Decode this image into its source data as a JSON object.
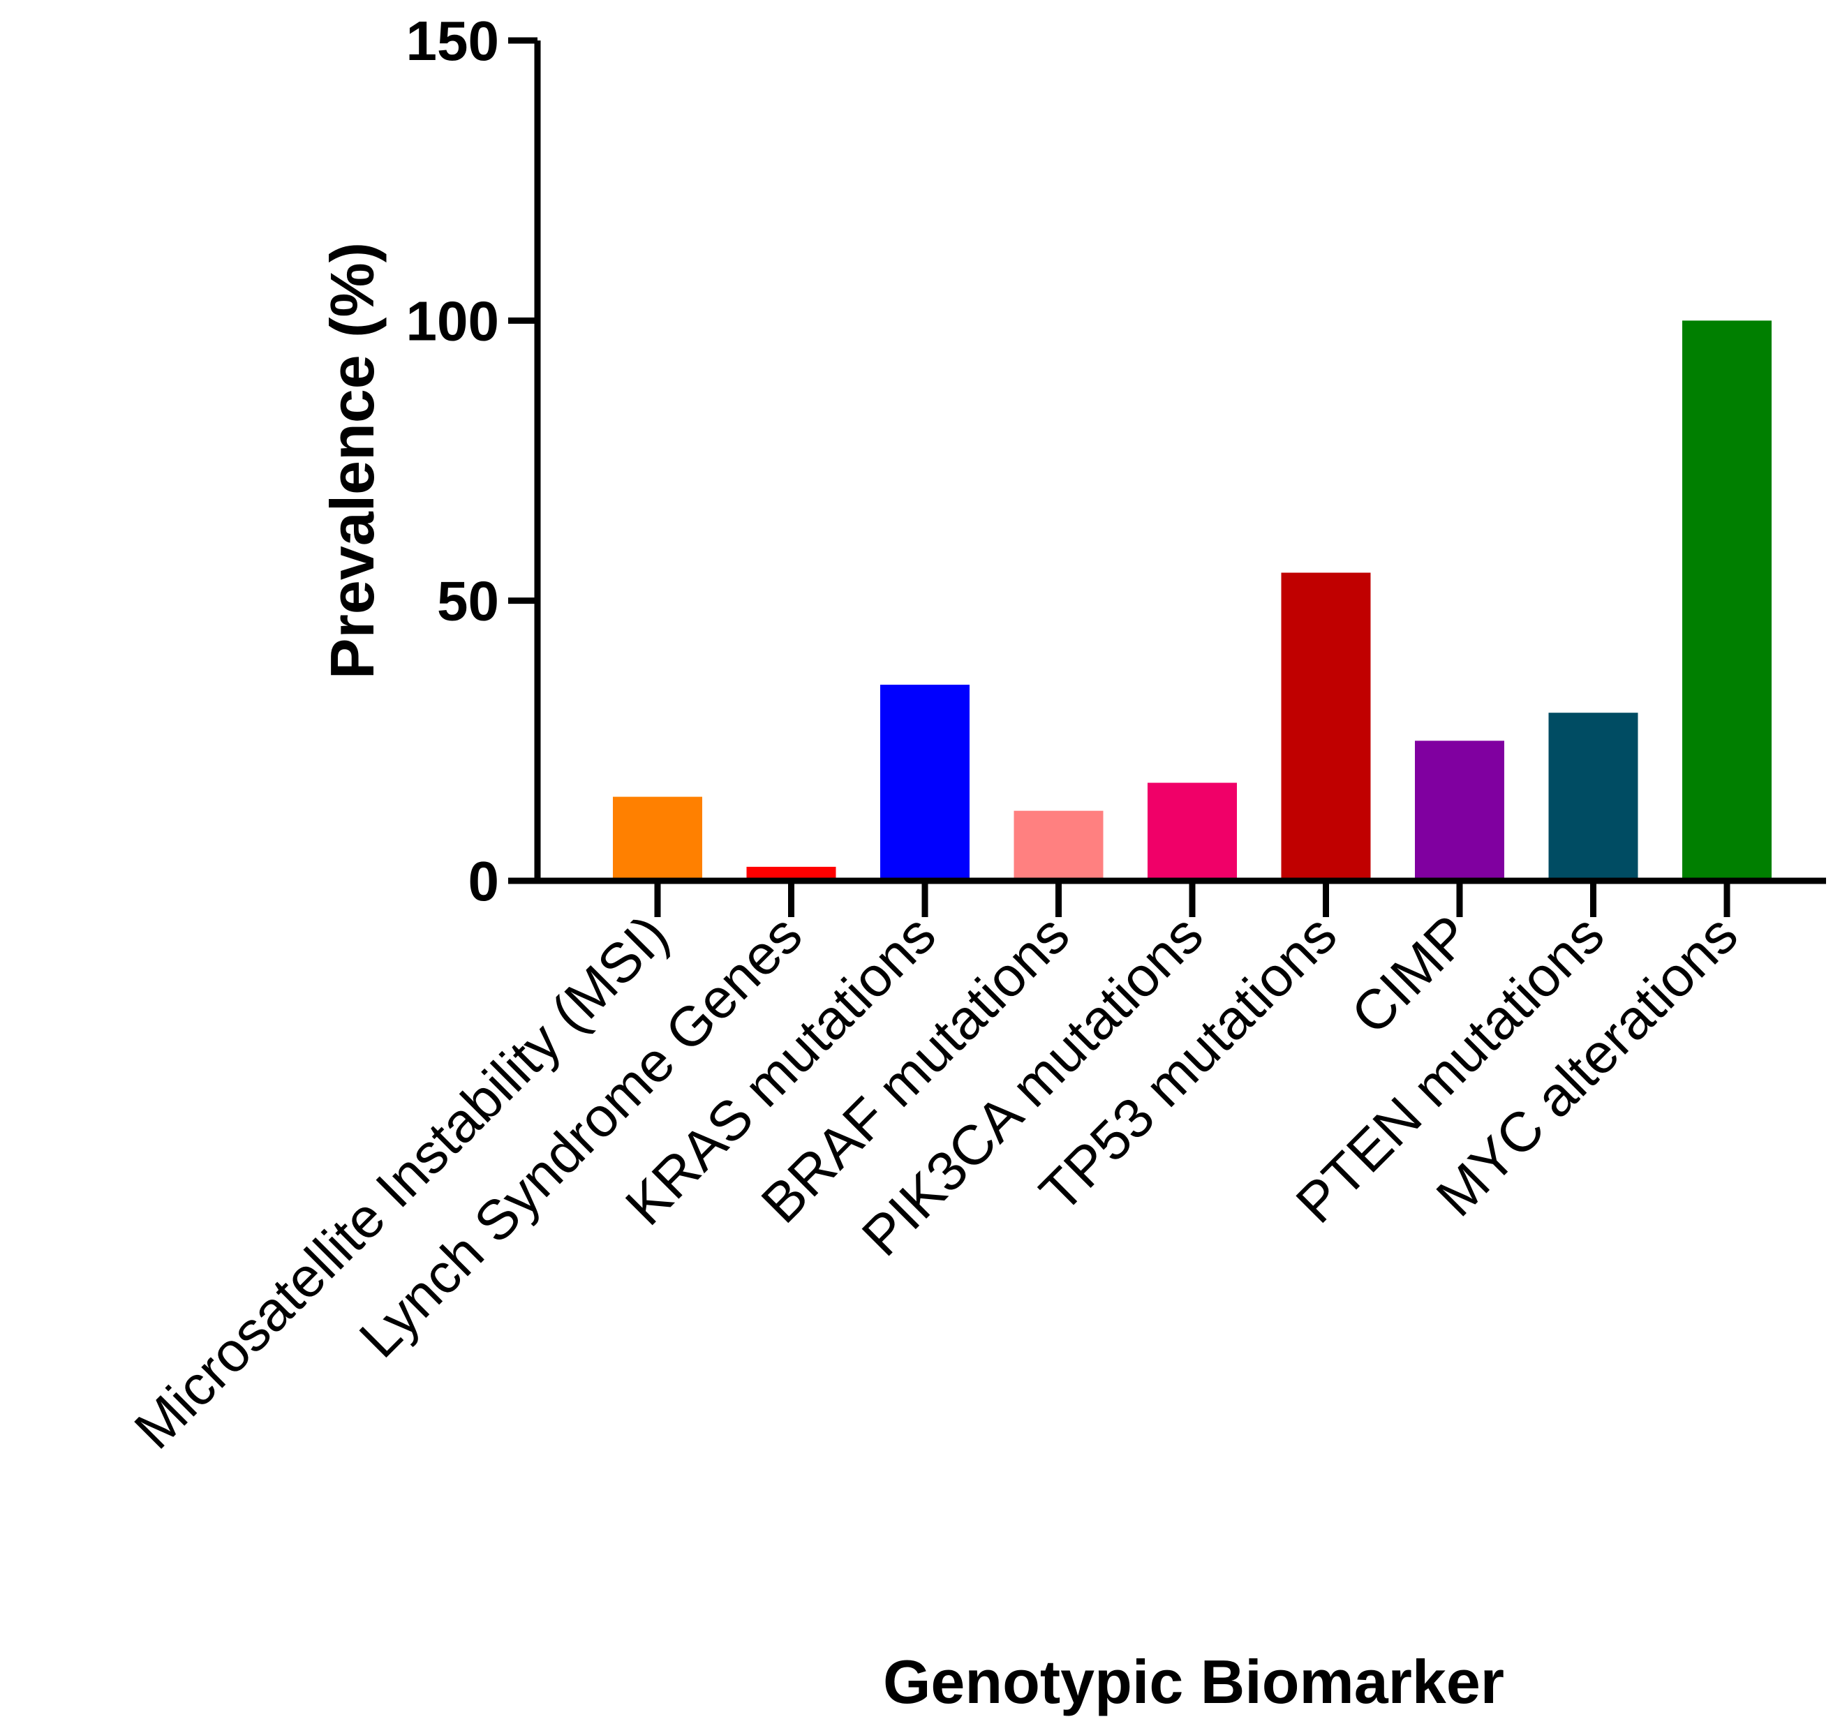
{
  "chart_data": {
    "type": "bar",
    "title": "",
    "xlabel": "Genotypic Biomarker",
    "ylabel": "Prevalence (%)",
    "ylim": [
      0,
      150
    ],
    "yticks": [
      0,
      50,
      100,
      150
    ],
    "yticks_labels": [
      "0",
      "50",
      "100",
      "150"
    ],
    "grid": false,
    "legend": "none",
    "categories": [
      "Microsatellite Instability (MSI)",
      "Lynch Syndrome Genes",
      "KRAS mutations",
      "BRAF mutations",
      "PIK3CA mutations",
      "TP53 mutations",
      "CIMP",
      "PTEN mutations",
      "MYC alterations"
    ],
    "values": [
      15,
      2.5,
      35,
      12.5,
      17.5,
      55,
      25,
      30,
      100
    ],
    "colors": [
      "#ff8000",
      "#ff0000",
      "#0000ff",
      "#ff8080",
      "#f00068",
      "#c00000",
      "#8000a0",
      "#004c63",
      "#007f00"
    ]
  }
}
